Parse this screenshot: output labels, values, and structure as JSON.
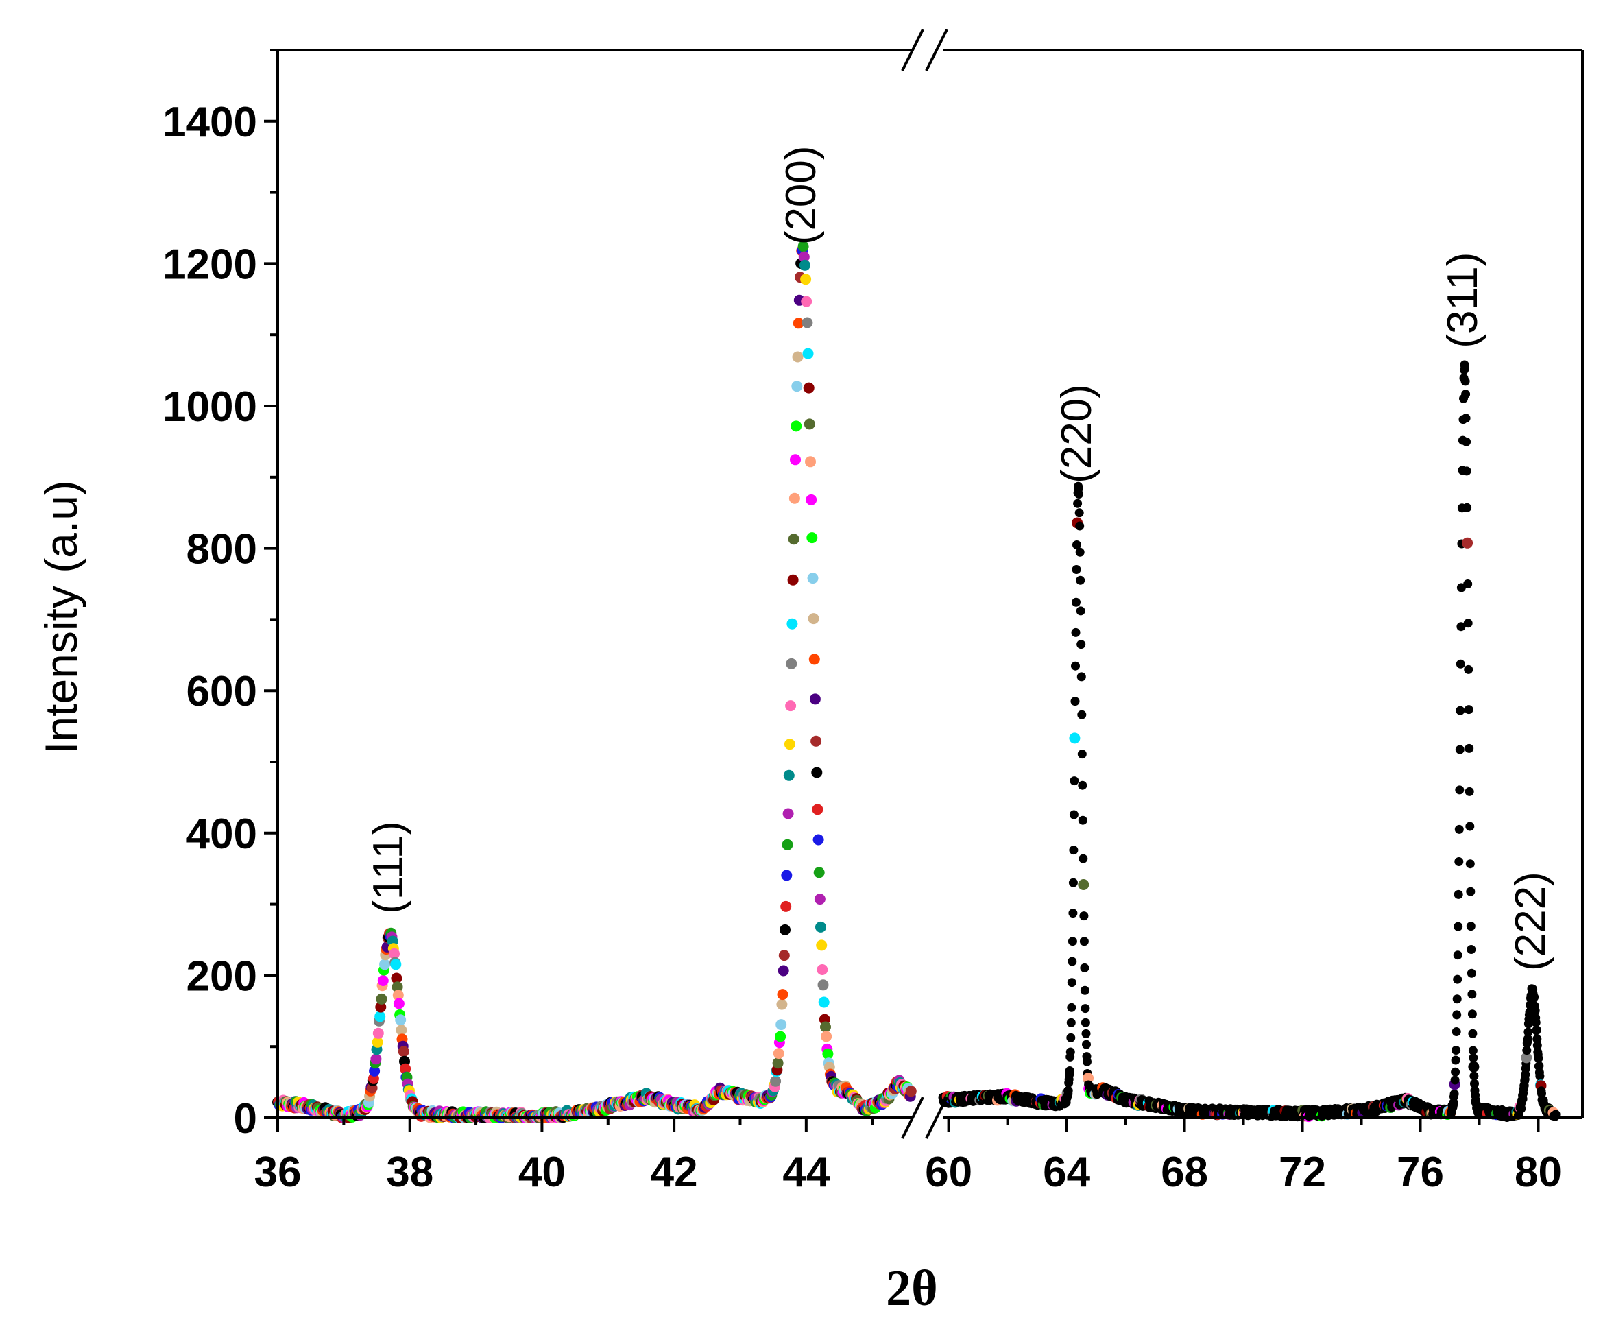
{
  "chart_data": {
    "type": "scatter",
    "xlabel": "2θ",
    "ylabel": "Intensity (a.u)",
    "ylim": [
      0,
      1500
    ],
    "y_ticks": [
      0,
      200,
      400,
      600,
      800,
      1000,
      1200,
      1400
    ],
    "axis_break": true,
    "segments": [
      {
        "xlim": [
          36,
          45.6
        ],
        "ticks": [
          36,
          38,
          40,
          42,
          44
        ]
      },
      {
        "xlim": [
          59.8,
          81.5
        ],
        "ticks": [
          60,
          64,
          68,
          72,
          76,
          80
        ]
      }
    ],
    "peaks": [
      {
        "label": "(111)",
        "x": 37.7,
        "y": 265
      },
      {
        "label": "(200)",
        "x": 43.95,
        "y": 1205
      },
      {
        "label": "(220)",
        "x": 64.4,
        "y": 870
      },
      {
        "label": "(311)",
        "x": 77.5,
        "y": 1060
      },
      {
        "label": "(222)",
        "x": 79.8,
        "y": 185
      }
    ],
    "baseline": [
      [
        36.0,
        22
      ],
      [
        36.5,
        15
      ],
      [
        37.0,
        3
      ],
      [
        37.3,
        8
      ],
      [
        38.3,
        5
      ],
      [
        39.0,
        4
      ],
      [
        40.0,
        2
      ],
      [
        40.6,
        8
      ],
      [
        41.2,
        20
      ],
      [
        41.6,
        30
      ],
      [
        42.0,
        18
      ],
      [
        42.4,
        12
      ],
      [
        42.7,
        38
      ],
      [
        43.0,
        30
      ],
      [
        43.3,
        25
      ],
      [
        44.6,
        40
      ],
      [
        44.9,
        12
      ],
      [
        45.2,
        25
      ],
      [
        45.4,
        50
      ],
      [
        45.6,
        32
      ],
      [
        60.0,
        25
      ],
      [
        61.0,
        28
      ],
      [
        62.0,
        30
      ],
      [
        63.0,
        22
      ],
      [
        63.7,
        20
      ],
      [
        65.2,
        40
      ],
      [
        66.0,
        25
      ],
      [
        67.0,
        18
      ],
      [
        68.0,
        10
      ],
      [
        70.0,
        8
      ],
      [
        72.0,
        6
      ],
      [
        74.0,
        10
      ],
      [
        75.5,
        24
      ],
      [
        76.4,
        8
      ],
      [
        78.2,
        10
      ],
      [
        79.0,
        5
      ],
      [
        80.3,
        10
      ],
      [
        80.6,
        4
      ]
    ],
    "marker_colors": [
      "#000000",
      "#e02020",
      "#1a1ae6",
      "#16a016",
      "#b020b0",
      "#008b8b",
      "#ffd700",
      "#ff69b4",
      "#808080",
      "#00e5ff",
      "#8b0000",
      "#556b2f",
      "#ffa07a",
      "#ff00ff",
      "#00ff00",
      "#87ceeb",
      "#d2b48c",
      "#ff4500",
      "#4b0082",
      "#a52a2a"
    ]
  }
}
